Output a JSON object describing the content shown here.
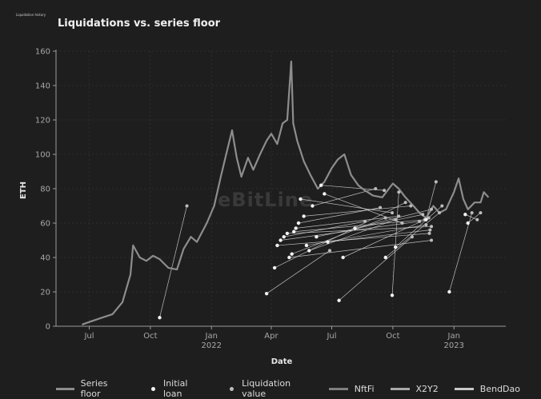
{
  "page": {
    "small_title": "Liquidation history",
    "watermark": "eBitLine"
  },
  "colors": {
    "background": "#1e1e1e",
    "floor_line": "#8d8d8d",
    "nftfi": "#7f7f7f",
    "x2y2": "#a9a9a9",
    "benddao": "#c9c9c9",
    "initial_loan": "#f2f2f2",
    "liquidation_value": "#bdbdbd"
  },
  "chart_data": {
    "type": "line",
    "title": "Liquidations vs. series floor",
    "xlabel": "Date",
    "ylabel": "ETH",
    "ylim": [
      0,
      160
    ],
    "xlim": [
      "2021-05-12",
      "2023-03-20"
    ],
    "x_ticks": [
      {
        "date": "2021-07-01",
        "label": "Jul",
        "sublabel": ""
      },
      {
        "date": "2021-10-01",
        "label": "Oct",
        "sublabel": ""
      },
      {
        "date": "2022-01-01",
        "label": "Jan",
        "sublabel": "2022"
      },
      {
        "date": "2022-04-01",
        "label": "Apr",
        "sublabel": ""
      },
      {
        "date": "2022-07-01",
        "label": "Jul",
        "sublabel": ""
      },
      {
        "date": "2022-10-01",
        "label": "Oct",
        "sublabel": ""
      },
      {
        "date": "2023-01-01",
        "label": "Jan",
        "sublabel": "2023"
      }
    ],
    "y_ticks": [
      0,
      20,
      40,
      60,
      80,
      100,
      120,
      140,
      160
    ],
    "grid": true,
    "legend": {
      "placement": "bottom",
      "entries": [
        {
          "label": "Series floor",
          "kind": "line"
        },
        {
          "label": "Initial loan",
          "kind": "dot"
        },
        {
          "label": "Liquidation value",
          "kind": "dot"
        },
        {
          "label": "NftFi",
          "kind": "line"
        },
        {
          "label": "X2Y2",
          "kind": "line"
        },
        {
          "label": "BendDao",
          "kind": "line"
        }
      ]
    },
    "series_floor": [
      [
        "2021-06-20",
        1
      ],
      [
        "2021-07-05",
        3
      ],
      [
        "2021-07-20",
        5
      ],
      [
        "2021-08-05",
        7
      ],
      [
        "2021-08-20",
        14
      ],
      [
        "2021-09-01",
        30
      ],
      [
        "2021-09-05",
        47
      ],
      [
        "2021-09-15",
        40
      ],
      [
        "2021-09-25",
        38
      ],
      [
        "2021-10-05",
        41
      ],
      [
        "2021-10-15",
        39
      ],
      [
        "2021-10-28",
        34
      ],
      [
        "2021-11-10",
        33
      ],
      [
        "2021-11-20",
        45
      ],
      [
        "2021-12-01",
        52
      ],
      [
        "2021-12-10",
        49
      ],
      [
        "2021-12-25",
        60
      ],
      [
        "2022-01-05",
        70
      ],
      [
        "2022-01-15",
        87
      ],
      [
        "2022-01-25",
        103
      ],
      [
        "2022-02-01",
        114
      ],
      [
        "2022-02-08",
        98
      ],
      [
        "2022-02-15",
        87
      ],
      [
        "2022-02-25",
        98
      ],
      [
        "2022-03-05",
        91
      ],
      [
        "2022-03-15",
        100
      ],
      [
        "2022-03-25",
        108
      ],
      [
        "2022-04-01",
        112
      ],
      [
        "2022-04-10",
        106
      ],
      [
        "2022-04-18",
        118
      ],
      [
        "2022-04-25",
        120
      ],
      [
        "2022-05-01",
        154
      ],
      [
        "2022-05-04",
        118
      ],
      [
        "2022-05-10",
        108
      ],
      [
        "2022-05-20",
        96
      ],
      [
        "2022-05-30",
        88
      ],
      [
        "2022-06-10",
        80
      ],
      [
        "2022-06-20",
        84
      ],
      [
        "2022-07-01",
        92
      ],
      [
        "2022-07-10",
        97
      ],
      [
        "2022-07-20",
        100
      ],
      [
        "2022-07-30",
        88
      ],
      [
        "2022-08-10",
        82
      ],
      [
        "2022-08-20",
        79
      ],
      [
        "2022-09-01",
        76
      ],
      [
        "2022-09-15",
        75
      ],
      [
        "2022-10-01",
        83
      ],
      [
        "2022-10-10",
        80
      ],
      [
        "2022-10-20",
        75
      ],
      [
        "2022-11-01",
        70
      ],
      [
        "2022-11-10",
        66
      ],
      [
        "2022-11-20",
        63
      ],
      [
        "2022-12-01",
        70
      ],
      [
        "2022-12-10",
        66
      ],
      [
        "2022-12-20",
        68
      ],
      [
        "2023-01-01",
        78
      ],
      [
        "2023-01-08",
        86
      ],
      [
        "2023-01-15",
        74
      ],
      [
        "2023-01-22",
        68
      ],
      [
        "2023-02-01",
        72
      ],
      [
        "2023-02-10",
        72
      ],
      [
        "2023-02-15",
        78
      ],
      [
        "2023-02-22",
        75
      ]
    ],
    "liquidations": [
      {
        "loan_date": "2021-10-15",
        "loan": 5,
        "liq_date": "2021-11-25",
        "liq": 70
      },
      {
        "loan_date": "2022-03-25",
        "loan": 19,
        "liq_date": "2022-06-28",
        "liq": 44
      },
      {
        "loan_date": "2022-04-06",
        "loan": 34,
        "liq_date": "2022-10-20",
        "liq": 72
      },
      {
        "loan_date": "2022-04-10",
        "loan": 47,
        "liq_date": "2022-11-25",
        "liq": 54
      },
      {
        "loan_date": "2022-04-15",
        "loan": 50,
        "liq_date": "2022-11-10",
        "liq": 61
      },
      {
        "loan_date": "2022-04-20",
        "loan": 52,
        "liq_date": "2022-08-20",
        "liq": 61
      },
      {
        "loan_date": "2022-04-25",
        "loan": 54,
        "liq_date": "2022-11-28",
        "liq": 58
      },
      {
        "loan_date": "2022-04-28",
        "loan": 40,
        "liq_date": "2022-11-28",
        "liq": 50
      },
      {
        "loan_date": "2022-05-02",
        "loan": 42,
        "liq_date": "2022-09-20",
        "liq": 63
      },
      {
        "loan_date": "2022-05-05",
        "loan": 55,
        "liq_date": "2022-11-18",
        "liq": 62
      },
      {
        "loan_date": "2022-05-08",
        "loan": 57,
        "liq_date": "2022-10-10",
        "liq": 64
      },
      {
        "loan_date": "2022-05-12",
        "loan": 60,
        "liq_date": "2022-09-12",
        "liq": 69
      },
      {
        "loan_date": "2022-05-15",
        "loan": 74,
        "liq_date": "2022-09-30",
        "liq": 66
      },
      {
        "loan_date": "2022-05-20",
        "loan": 64,
        "liq_date": "2022-10-28",
        "liq": 70
      },
      {
        "loan_date": "2022-05-24",
        "loan": 47,
        "liq_date": "2022-11-20",
        "liq": 59
      },
      {
        "loan_date": "2022-05-28",
        "loan": 44,
        "liq_date": "2022-10-05",
        "liq": 62
      },
      {
        "loan_date": "2022-06-02",
        "loan": 70,
        "liq_date": "2022-09-05",
        "liq": 80
      },
      {
        "loan_date": "2022-06-08",
        "loan": 52,
        "liq_date": "2022-11-15",
        "liq": 65
      },
      {
        "loan_date": "2022-06-15",
        "loan": 82,
        "liq_date": "2022-09-18",
        "liq": 79
      },
      {
        "loan_date": "2022-06-20",
        "loan": 77,
        "liq_date": "2022-10-15",
        "liq": 60
      },
      {
        "loan_date": "2022-06-25",
        "loan": 49,
        "liq_date": "2022-11-26",
        "liq": 56
      },
      {
        "loan_date": "2022-07-12",
        "loan": 15,
        "liq_date": "2022-10-30",
        "liq": 52
      },
      {
        "loan_date": "2022-07-18",
        "loan": 40,
        "liq_date": "2022-11-24",
        "liq": 63
      },
      {
        "loan_date": "2022-08-05",
        "loan": 57,
        "liq_date": "2022-11-28",
        "liq": 68
      },
      {
        "loan_date": "2022-09-20",
        "loan": 40,
        "liq_date": "2022-12-10",
        "liq": 66
      },
      {
        "loan_date": "2022-09-30",
        "loan": 18,
        "liq_date": "2022-10-10",
        "liq": 78
      },
      {
        "loan_date": "2022-10-05",
        "loan": 46,
        "liq_date": "2022-12-14",
        "liq": 70
      },
      {
        "loan_date": "2022-11-20",
        "loan": 62,
        "liq_date": "2022-12-05",
        "liq": 84
      },
      {
        "loan_date": "2022-12-25",
        "loan": 20,
        "liq_date": "2023-01-28",
        "liq": 66
      },
      {
        "loan_date": "2023-01-18",
        "loan": 65,
        "liq_date": "2023-02-05",
        "liq": 62
      },
      {
        "loan_date": "2023-01-22",
        "loan": 60,
        "liq_date": "2023-02-10",
        "liq": 66
      }
    ]
  }
}
